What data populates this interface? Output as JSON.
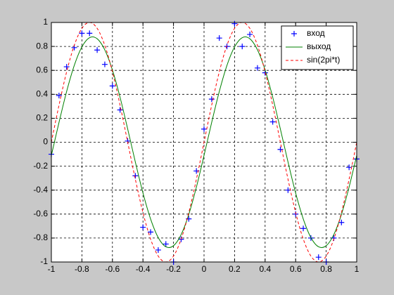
{
  "chart_data": {
    "type": "line",
    "x": [
      -1,
      -0.95,
      -0.9,
      -0.85,
      -0.8,
      -0.75,
      -0.7,
      -0.65,
      -0.6,
      -0.55,
      -0.5,
      -0.45,
      -0.4,
      -0.35,
      -0.3,
      -0.25,
      -0.2,
      -0.15,
      -0.1,
      -0.05,
      0,
      0.05,
      0.1,
      0.15,
      0.2,
      0.25,
      0.3,
      0.35,
      0.4,
      0.45,
      0.5,
      0.55,
      0.6,
      0.65,
      0.7,
      0.75,
      0.8,
      0.85,
      0.9,
      0.95,
      1
    ],
    "series": [
      {
        "name": "вход",
        "color": "#0000ff",
        "style": "marker",
        "values": [
          -0.1,
          0.39,
          0.63,
          0.79,
          0.91,
          0.91,
          0.77,
          0.65,
          0.47,
          0.27,
          0.01,
          -0.28,
          -0.71,
          -0.75,
          -0.9,
          -0.85,
          -1.0,
          -0.81,
          -0.64,
          -0.24,
          0.11,
          0.36,
          0.87,
          0.8,
          0.99,
          0.8,
          0.9,
          0.62,
          0.58,
          0.17,
          -0.06,
          -0.4,
          -0.6,
          -0.72,
          -0.8,
          -0.96,
          -1.0,
          -0.8,
          -0.67,
          -0.21,
          -0.14
        ]
      },
      {
        "name": "выход",
        "color": "#008000",
        "style": "solid",
        "values": [
          -0.11,
          0.165,
          0.424,
          0.641,
          0.796,
          0.873,
          0.864,
          0.771,
          0.603,
          0.375,
          0.11,
          -0.165,
          -0.424,
          -0.641,
          -0.796,
          -0.873,
          -0.864,
          -0.771,
          -0.603,
          -0.375,
          -0.11,
          0.165,
          0.424,
          0.641,
          0.796,
          0.873,
          0.864,
          0.771,
          0.603,
          0.375,
          0.11,
          -0.165,
          -0.424,
          -0.641,
          -0.796,
          -0.873,
          -0.864,
          -0.771,
          -0.603,
          -0.375,
          -0.11
        ]
      },
      {
        "name": "sin(2pi*t)",
        "color": "#ff0000",
        "style": "dashed",
        "values": [
          0,
          0.309,
          0.588,
          0.809,
          0.951,
          1,
          0.951,
          0.809,
          0.588,
          0.309,
          0,
          -0.309,
          -0.588,
          -0.809,
          -0.951,
          -1,
          -0.951,
          -0.809,
          -0.588,
          -0.309,
          0,
          0.309,
          0.588,
          0.809,
          0.951,
          1,
          0.951,
          0.809,
          0.588,
          0.309,
          0,
          -0.309,
          -0.588,
          -0.809,
          -0.951,
          -1,
          -0.951,
          -0.809,
          -0.588,
          -0.309,
          0
        ]
      }
    ],
    "xlim": [
      -1,
      1
    ],
    "ylim": [
      -1,
      1
    ],
    "xticks": [
      -1,
      -0.8,
      -0.6,
      -0.4,
      -0.2,
      0,
      0.2,
      0.4,
      0.6,
      0.8,
      1
    ],
    "yticks": [
      -1,
      -0.8,
      -0.6,
      -0.4,
      -0.2,
      0,
      0.2,
      0.4,
      0.6,
      0.8,
      1
    ],
    "grid": true,
    "legend": "upper right"
  }
}
